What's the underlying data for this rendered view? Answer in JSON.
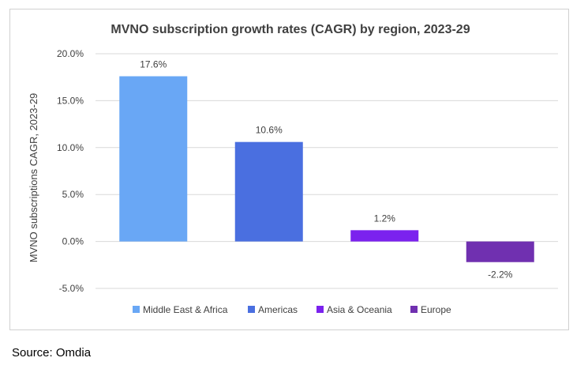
{
  "source": "Source: Omdia",
  "chart_data": {
    "type": "bar",
    "title": "MVNO subscription growth rates (CAGR) by region, 2023-29",
    "ylabel": "MVNO subscriptions CAGR, 2023-29",
    "xlabel": "",
    "ylim": [
      -5,
      20
    ],
    "yticks": [
      -5,
      0,
      5,
      10,
      15,
      20
    ],
    "ytick_labels": [
      "-5.0%",
      "0.0%",
      "5.0%",
      "10.0%",
      "15.0%",
      "20.0%"
    ],
    "grid": true,
    "legend_position": "bottom",
    "series": [
      {
        "name": "Middle East & Africa",
        "value": 17.6,
        "label": "17.6%",
        "color": "#69A7F5"
      },
      {
        "name": "Americas",
        "value": 10.6,
        "label": "10.6%",
        "color": "#4A6FE0"
      },
      {
        "name": "Asia & Oceania",
        "value": 1.2,
        "label": "1.2%",
        "color": "#7B22EE"
      },
      {
        "name": "Europe",
        "value": -2.2,
        "label": "-2.2%",
        "color": "#7030B0"
      }
    ]
  }
}
